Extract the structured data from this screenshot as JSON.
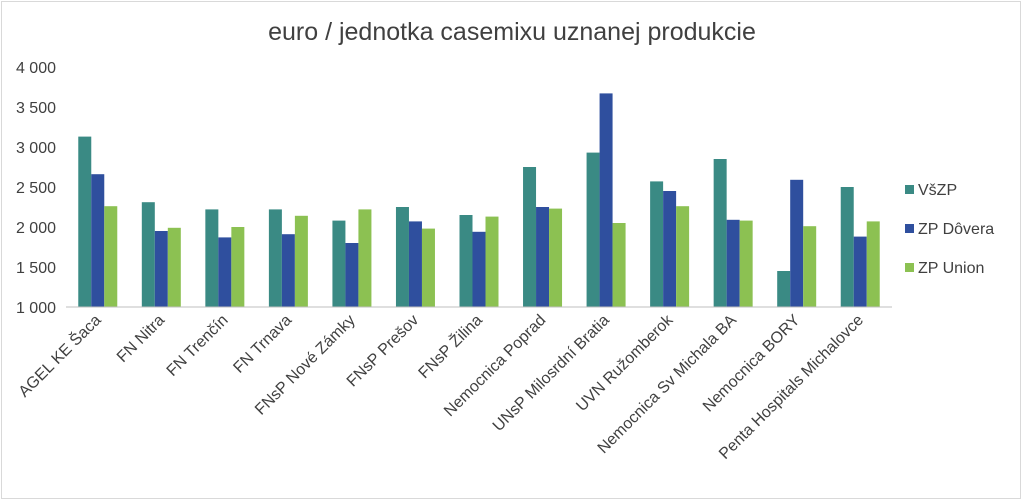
{
  "chart_data": {
    "type": "bar",
    "title": "euro / jednotka casemixu uznanej produkcie",
    "xlabel": "",
    "ylabel": "",
    "ylim": [
      1000,
      4000
    ],
    "yticks": [
      1000,
      1500,
      2000,
      2500,
      3000,
      3500,
      4000
    ],
    "ytick_labels": [
      "1 000",
      "1 500",
      "2 000",
      "2 500",
      "3 000",
      "3 500",
      "4 000"
    ],
    "grid": false,
    "legend_position": "right",
    "categories": [
      "AGEL KE Šaca",
      "FN Nitra",
      "FN Trenčín",
      "FN Trnava",
      "FNsP Nové Zámky",
      "FNsP Prešov",
      "FNsP Žilina",
      "Nemocnica Poprad",
      "UNsP Milosrdní Bratia",
      "UVN Ružomberok",
      "Nemocnica Sv Michala BA",
      "Nemocnica BORY",
      "Penta Hospitals Michalovce"
    ],
    "series": [
      {
        "name": "VšZP",
        "color": "#3a8a84",
        "values": [
          3130,
          2310,
          2220,
          2220,
          2080,
          2250,
          2150,
          2750,
          2930,
          2570,
          2850,
          1450,
          2500
        ]
      },
      {
        "name": "ZP Dôvera",
        "color": "#2f4f9e",
        "values": [
          2660,
          1950,
          1870,
          1910,
          1800,
          2070,
          1940,
          2250,
          3670,
          2450,
          2090,
          2590,
          1880
        ]
      },
      {
        "name": "ZP Union",
        "color": "#8cc152",
        "values": [
          2260,
          1990,
          2000,
          2140,
          2220,
          1980,
          2130,
          2230,
          2050,
          2260,
          2080,
          2010,
          2070
        ]
      }
    ]
  }
}
